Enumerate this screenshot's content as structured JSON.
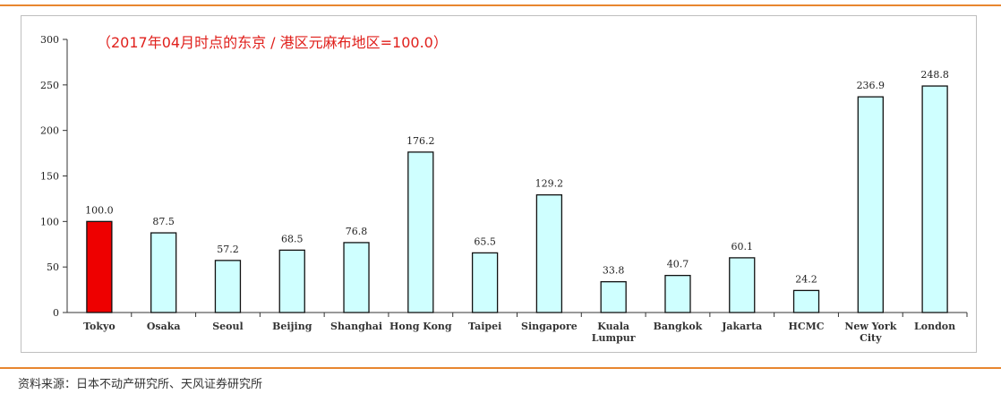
{
  "source_note": "资料来源：日本不动产研究所、天风证券研究所",
  "colors": {
    "highlight_bar": "#ee0000",
    "bar": "#cfffff",
    "bar_stroke": "#111111",
    "title": "#e0201c",
    "rule": "#e8862f"
  },
  "chart_data": {
    "type": "bar",
    "title": "（2017年04月时点的东京 / 港区元麻布地区=100.0）",
    "xlabel": "",
    "ylabel": "",
    "ylim": [
      0,
      300
    ],
    "yticks": [
      "0",
      "50",
      "100",
      "150",
      "200",
      "250",
      "300"
    ],
    "grid": false,
    "categories": [
      [
        "Tokyo"
      ],
      [
        "Osaka"
      ],
      [
        "Seoul"
      ],
      [
        "Beijing"
      ],
      [
        "Shanghai"
      ],
      [
        "Hong Kong"
      ],
      [
        "Taipei"
      ],
      [
        "Singapore"
      ],
      [
        "Kuala",
        "Lumpur"
      ],
      [
        "Bangkok"
      ],
      [
        "Jakarta"
      ],
      [
        "HCMC"
      ],
      [
        "New York",
        "City"
      ],
      [
        "London"
      ]
    ],
    "values": [
      100.0,
      87.5,
      57.2,
      68.5,
      76.8,
      176.2,
      65.5,
      129.2,
      33.8,
      40.7,
      60.1,
      24.2,
      236.9,
      248.8
    ],
    "value_labels": [
      "100.0",
      "87.5",
      "57.2",
      "68.5",
      "76.8",
      "176.2",
      "65.5",
      "129.2",
      "33.8",
      "40.7",
      "60.1",
      "24.2",
      "236.9",
      "248.8"
    ],
    "highlight_index": 0
  }
}
